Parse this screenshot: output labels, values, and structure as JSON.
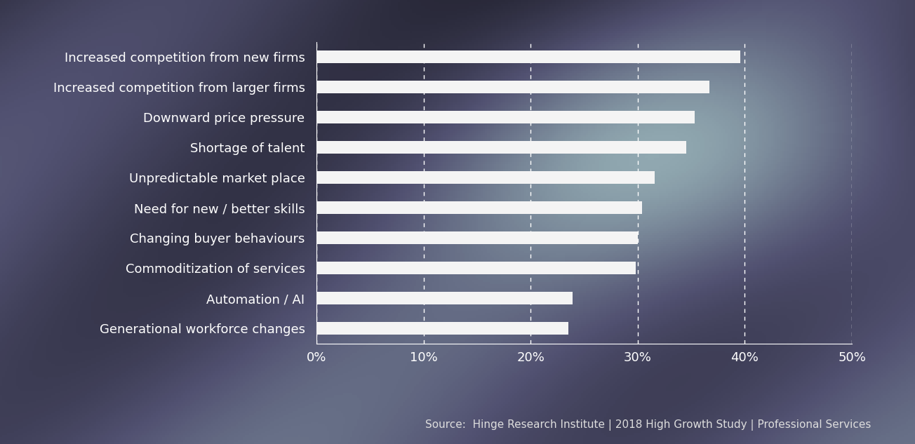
{
  "chart_data": {
    "type": "bar",
    "orientation": "horizontal",
    "categories": [
      "Increased competition from new firms",
      "Increased competition from larger firms",
      "Downward price pressure",
      "Shortage of talent",
      "Unpredictable market place",
      "Need for new / better skills",
      "Changing buyer behaviours",
      "Commoditization of services",
      "Automation / AI",
      "Generational workforce changes"
    ],
    "values": [
      39.6,
      36.7,
      35.3,
      34.5,
      31.6,
      30.4,
      30.0,
      29.8,
      23.9,
      23.5
    ],
    "color": "#f4f4f4",
    "xlim": [
      0,
      50
    ],
    "xticks": [
      {
        "value": 0,
        "label": "0%"
      },
      {
        "value": 10,
        "label": "10%"
      },
      {
        "value": 20,
        "label": "20%"
      },
      {
        "value": 30,
        "label": "30%"
      },
      {
        "value": 40,
        "label": "40%"
      },
      {
        "value": 50,
        "label": "50%"
      }
    ],
    "grid": true,
    "annotations": [
      "Source:  Hinge Research Institute | 2018 High Growth Study | Professional Services"
    ]
  }
}
